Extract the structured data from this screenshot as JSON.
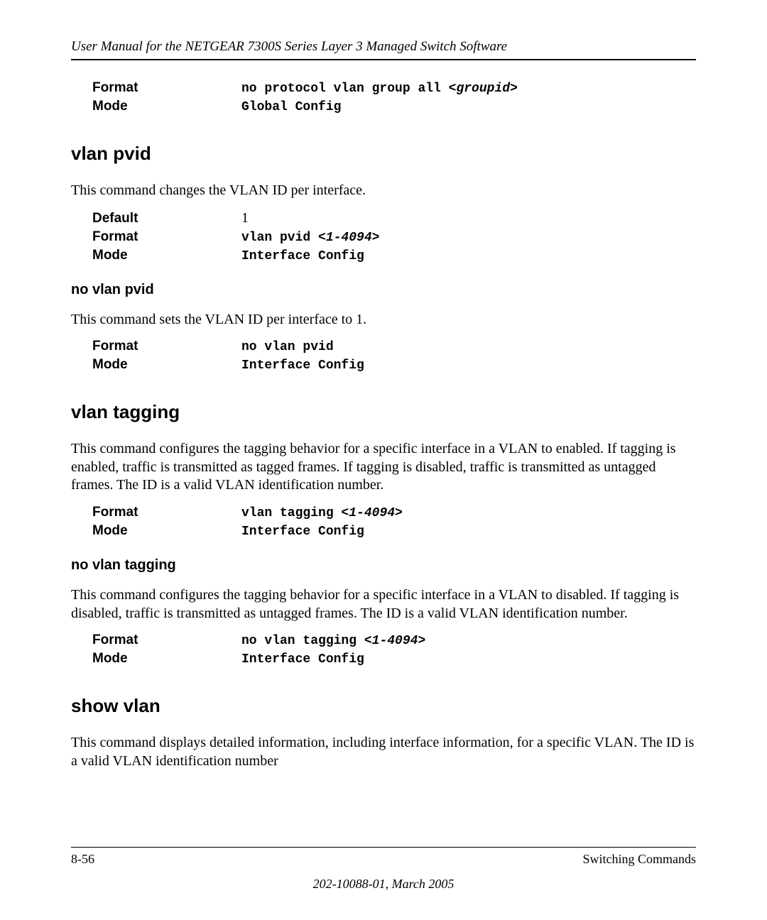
{
  "header": {
    "title": "User Manual for the NETGEAR 7300S Series Layer 3 Managed Switch Software"
  },
  "block1": {
    "format_label": "Format",
    "format_value_pre": "no protocol vlan group all <",
    "format_value_italic": "groupid",
    "format_value_post": ">",
    "mode_label": "Mode",
    "mode_value": "Global Config"
  },
  "vlan_pvid": {
    "heading": "vlan pvid",
    "desc": "This command changes the VLAN ID per interface.",
    "default_label": "Default",
    "default_value": "1",
    "format_label": "Format",
    "format_value_pre": "vlan pvid <",
    "format_value_italic": "1-4094",
    "format_value_post": ">",
    "mode_label": "Mode",
    "mode_value": "Interface Config"
  },
  "no_vlan_pvid": {
    "heading": "no vlan pvid",
    "desc": "This command sets the VLAN ID per interface to 1.",
    "format_label": "Format",
    "format_value": "no vlan pvid",
    "mode_label": "Mode",
    "mode_value": "Interface Config"
  },
  "vlan_tagging": {
    "heading": "vlan tagging",
    "desc": "This command configures the tagging behavior for a specific interface in a VLAN to enabled. If tagging is enabled, traffic is transmitted as tagged frames. If tagging is disabled, traffic is transmitted as untagged frames. The ID is a valid VLAN identification number.",
    "format_label": "Format",
    "format_value_pre": "vlan tagging <",
    "format_value_italic": "1-4094",
    "format_value_post": ">",
    "mode_label": "Mode",
    "mode_value": "Interface Config"
  },
  "no_vlan_tagging": {
    "heading": "no vlan tagging",
    "desc": "This command configures the tagging behavior for a specific interface in a VLAN to disabled. If tagging is disabled, traffic is transmitted as untagged frames. The ID is a valid VLAN identification number.",
    "format_label": "Format",
    "format_value_pre": "no vlan tagging <",
    "format_value_italic": "1-4094",
    "format_value_post": ">",
    "mode_label": "Mode",
    "mode_value": "Interface Config"
  },
  "show_vlan": {
    "heading": "show vlan",
    "desc": "This command displays detailed information, including interface information, for a specific VLAN. The ID is a valid VLAN identification number"
  },
  "footer": {
    "page": "8-56",
    "section": "Switching Commands",
    "docref": "202-10088-01, March 2005"
  }
}
